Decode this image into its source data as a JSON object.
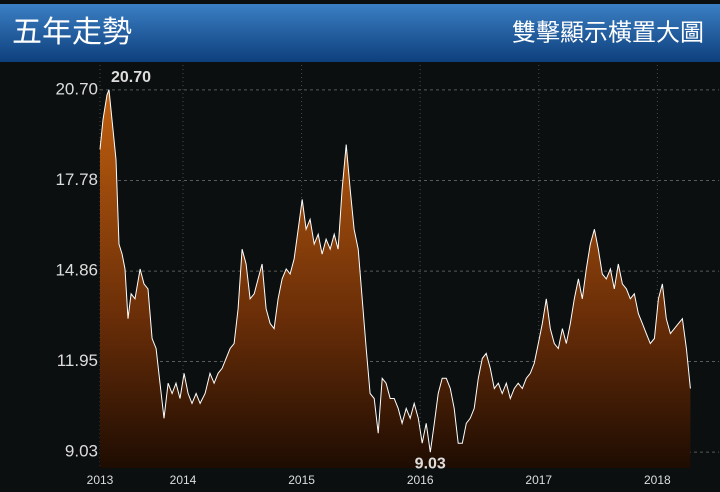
{
  "header": {
    "title": "五年走勢",
    "action": "雙擊顯示橫置大圖"
  },
  "chart_data": {
    "type": "area",
    "x": [
      2013.3,
      2013.325,
      2013.359,
      2013.376,
      2013.41,
      2013.435,
      2013.46,
      2013.486,
      2013.511,
      2013.536,
      2013.562,
      2013.595,
      2013.638,
      2013.671,
      2013.705,
      2013.739,
      2013.773,
      2013.806,
      2013.84,
      2013.874,
      2013.908,
      2013.941,
      2013.975,
      2014.009,
      2014.043,
      2014.076,
      2014.11,
      2014.144,
      2014.186,
      2014.228,
      2014.262,
      2014.296,
      2014.33,
      2014.363,
      2014.397,
      2014.431,
      2014.465,
      2014.498,
      2014.532,
      2014.566,
      2014.6,
      2014.633,
      2014.667,
      2014.701,
      2014.735,
      2014.768,
      2014.802,
      2014.836,
      2014.87,
      2014.903,
      2014.937,
      2014.971,
      2015.005,
      2015.038,
      2015.072,
      2015.106,
      2015.14,
      2015.173,
      2015.207,
      2015.241,
      2015.275,
      2015.308,
      2015.342,
      2015.376,
      2015.41,
      2015.443,
      2015.477,
      2015.511,
      2015.545,
      2015.578,
      2015.612,
      2015.646,
      2015.68,
      2015.713,
      2015.747,
      2015.781,
      2015.815,
      2015.848,
      2015.882,
      2015.916,
      2015.95,
      2015.984,
      2016.017,
      2016.051,
      2016.085,
      2016.119,
      2016.152,
      2016.186,
      2016.22,
      2016.254,
      2016.287,
      2016.321,
      2016.355,
      2016.389,
      2016.422,
      2016.456,
      2016.49,
      2016.524,
      2016.557,
      2016.591,
      2016.625,
      2016.659,
      2016.692,
      2016.726,
      2016.76,
      2016.794,
      2016.827,
      2016.861,
      2016.895,
      2016.929,
      2016.962,
      2016.996,
      2017.03,
      2017.064,
      2017.097,
      2017.131,
      2017.165,
      2017.199,
      2017.232,
      2017.266,
      2017.3,
      2017.334,
      2017.367,
      2017.401,
      2017.435,
      2017.469,
      2017.502,
      2017.536,
      2017.57,
      2017.604,
      2017.637,
      2017.671,
      2017.705,
      2017.739,
      2017.772,
      2017.806,
      2017.84,
      2017.874,
      2017.907,
      2017.941,
      2017.975,
      2018.009,
      2018.043,
      2018.076,
      2018.11,
      2018.144,
      2018.178,
      2018.211,
      2018.245,
      2018.279
    ],
    "values": [
      18.78,
      19.74,
      20.54,
      20.7,
      19.42,
      18.46,
      15.73,
      15.41,
      14.93,
      13.33,
      14.13,
      13.97,
      14.93,
      14.45,
      14.29,
      12.69,
      12.37,
      11.25,
      10.12,
      11.25,
      10.92,
      11.25,
      10.76,
      11.57,
      10.92,
      10.6,
      10.92,
      10.6,
      10.92,
      11.57,
      11.25,
      11.57,
      11.73,
      12.05,
      12.37,
      12.53,
      13.65,
      15.57,
      15.09,
      13.97,
      14.13,
      14.61,
      15.09,
      13.65,
      13.17,
      13.01,
      13.97,
      14.61,
      14.93,
      14.77,
      15.25,
      16.21,
      17.17,
      16.21,
      16.53,
      15.73,
      16.05,
      15.41,
      15.89,
      15.57,
      16.05,
      15.57,
      17.49,
      18.94,
      17.49,
      16.21,
      15.57,
      13.97,
      12.37,
      10.92,
      10.76,
      9.64,
      11.41,
      11.25,
      10.76,
      10.76,
      10.44,
      9.96,
      10.44,
      10.12,
      10.6,
      10.12,
      9.32,
      9.96,
      9.03,
      9.96,
      10.92,
      11.41,
      11.41,
      11.08,
      10.44,
      9.32,
      9.32,
      9.96,
      10.12,
      10.44,
      11.41,
      12.05,
      12.21,
      11.73,
      11.08,
      11.25,
      10.92,
      11.25,
      10.76,
      11.08,
      11.25,
      11.08,
      11.41,
      11.57,
      11.89,
      12.53,
      13.17,
      13.97,
      13.01,
      12.53,
      12.37,
      13.01,
      12.53,
      13.17,
      13.97,
      14.61,
      13.97,
      14.93,
      15.73,
      16.21,
      15.57,
      14.77,
      14.61,
      14.93,
      14.29,
      15.09,
      14.45,
      14.29,
      13.97,
      14.13,
      13.49,
      13.17,
      12.85,
      12.53,
      12.69,
      13.97,
      14.45,
      13.33,
      12.85,
      13.01,
      13.17,
      13.33,
      12.37,
      11.08
    ],
    "color": "#ffffff",
    "fill": "#b8560f",
    "annotations": [
      "20.70",
      "9.03"
    ],
    "xlim": [
      2013.3,
      2018.52
    ],
    "xticks": [
      {
        "value": 2013.3,
        "label": "2013"
      },
      2014,
      2015,
      2016,
      2017,
      2018
    ],
    "ylim": [
      8.52,
      21.5
    ],
    "yticks": [
      {
        "value": 20.7,
        "label": "20.70"
      },
      17.78,
      14.86,
      11.95,
      9.03
    ],
    "grid": true
  }
}
